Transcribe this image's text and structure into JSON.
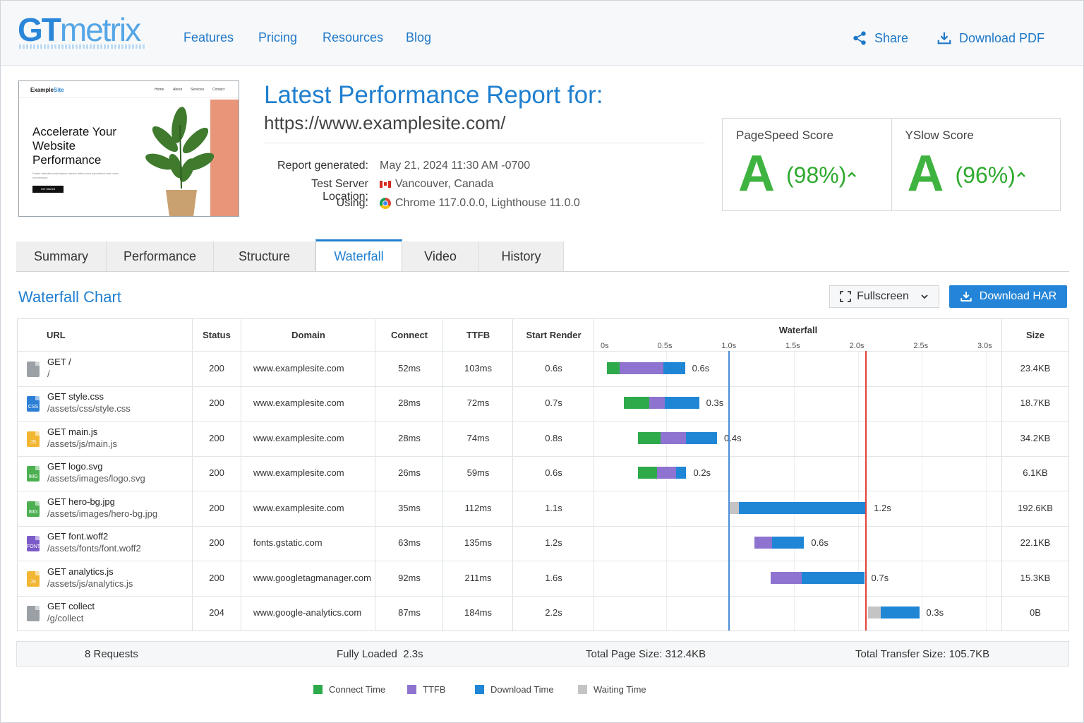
{
  "brand": {
    "logo_gt": "GT",
    "logo_metrix": "metrix"
  },
  "nav": {
    "features": "Features",
    "pricing": "Pricing",
    "resources": "Resources",
    "blog": "Blog"
  },
  "actions": {
    "share": "Share",
    "download_pdf": "Download PDF"
  },
  "thumbnail": {
    "site_name_a": "Example",
    "site_name_b": "Site",
    "menu": [
      "Home",
      "About",
      "Services",
      "Contact"
    ],
    "headline": "Accelerate Your Website Performance",
    "subtext": "Faster website performance means better user experience and more conversions.",
    "cta": "Get Started"
  },
  "report": {
    "heading": "Latest Performance Report for:",
    "url": "https://www.examplesite.com/",
    "generated_label": "Report generated:",
    "generated_value": "May 21, 2024 11:30 AM -0700",
    "location_label": "Test Server Location:",
    "location_value": "Vancouver, Canada",
    "using_label": "Using:",
    "using_value": "Chrome 117.0.0.0, Lighthouse 11.0.0"
  },
  "scores": {
    "pagespeed": {
      "label": "PageSpeed Score",
      "grade": "A",
      "percent": "(98%)",
      "arrow": "^"
    },
    "yslow": {
      "label": "YSlow Score",
      "grade": "A",
      "percent": "(96%)",
      "arrow": "^"
    }
  },
  "tabs": [
    "Summary",
    "Performance",
    "Structure",
    "Waterfall",
    "Video",
    "History"
  ],
  "active_tab": "Waterfall",
  "waterfall": {
    "title": "Waterfall Chart",
    "fullscreen_label": "Fullscreen",
    "download_har_label": "Download HAR",
    "headers": {
      "url": "URL",
      "status": "Status",
      "domain": "Domain",
      "connect": "Connect",
      "ttfb": "TTFB",
      "start_render": "Start Render",
      "waterfall": "Waterfall",
      "size": "Size"
    },
    "ticks": [
      "0s",
      "0.5s",
      "1.0s",
      "1.5s",
      "2.0s",
      "2.5s",
      "3.0s"
    ],
    "axis_max_s": 3.0,
    "markers_s": [
      {
        "name": "first-render",
        "t": 1.0,
        "color": "#4a90d9"
      },
      {
        "name": "onload",
        "t": 2.07,
        "color": "#e0443a"
      }
    ],
    "colors": {
      "connect": "#2eaa4a",
      "ttfb": "#8e74d0",
      "download": "#1f86d6",
      "wait": "#c4c4c4"
    },
    "rows": [
      {
        "method": "GET /",
        "path": "/",
        "icon": "doc",
        "status": "200",
        "domain": "www.examplesite.com",
        "connect": "52ms",
        "ttfb": "103ms",
        "start_render": "0.6s",
        "size": "23.4KB",
        "bar": {
          "start": 0.05,
          "wait": 0,
          "connect": 0.1,
          "ttfb": 0.34,
          "download": 0.17
        },
        "bar_label": "0.6s"
      },
      {
        "method": "GET style.css",
        "path": "/assets/css/style.css",
        "icon": "css",
        "status": "200",
        "domain": "www.examplesite.com",
        "connect": "28ms",
        "ttfb": "72ms",
        "start_render": "0.7s",
        "size": "18.7KB",
        "bar": {
          "start": 0.18,
          "wait": 0,
          "connect": 0.2,
          "ttfb": 0.12,
          "download": 0.27
        },
        "bar_label": "0.3s"
      },
      {
        "method": "GET main.js",
        "path": "/assets/js/main.js",
        "icon": "js",
        "status": "200",
        "domain": "www.examplesite.com",
        "connect": "28ms",
        "ttfb": "74ms",
        "start_render": "0.8s",
        "size": "34.2KB",
        "bar": {
          "start": 0.29,
          "wait": 0,
          "connect": 0.18,
          "ttfb": 0.2,
          "download": 0.24
        },
        "bar_label": "0.4s"
      },
      {
        "method": "GET logo.svg",
        "path": "/assets/images/logo.svg",
        "icon": "img",
        "status": "200",
        "domain": "www.examplesite.com",
        "connect": "26ms",
        "ttfb": "59ms",
        "start_render": "0.6s",
        "size": "6.1KB",
        "bar": {
          "start": 0.29,
          "wait": 0,
          "connect": 0.15,
          "ttfb": 0.15,
          "download": 0.08
        },
        "bar_label": "0.2s"
      },
      {
        "method": "GET hero-bg.jpg",
        "path": "/assets/images/hero-bg.jpg",
        "icon": "img",
        "status": "200",
        "domain": "www.examplesite.com",
        "connect": "35ms",
        "ttfb": "112ms",
        "start_render": "1.1s",
        "size": "192.6KB",
        "bar": {
          "start": 1.0,
          "wait": 0.08,
          "connect": 0,
          "ttfb": 0,
          "download": 1.0
        },
        "bar_label": "1.2s"
      },
      {
        "method": "GET font.woff2",
        "path": "/assets/fonts/font.woff2",
        "icon": "font",
        "status": "200",
        "domain": "fonts.gstatic.com",
        "connect": "63ms",
        "ttfb": "135ms",
        "start_render": "1.2s",
        "size": "22.1KB",
        "bar": {
          "start": 1.2,
          "wait": 0,
          "connect": 0,
          "ttfb": 0.14,
          "download": 0.25
        },
        "bar_label": "0.6s"
      },
      {
        "method": "GET analytics.js",
        "path": "/assets/js/analytics.js",
        "icon": "js",
        "status": "200",
        "domain": "www.googletagmanager.com",
        "connect": "92ms",
        "ttfb": "211ms",
        "start_render": "1.6s",
        "size": "15.3KB",
        "bar": {
          "start": 1.33,
          "wait": 0,
          "connect": 0,
          "ttfb": 0.24,
          "download": 0.49
        },
        "bar_label": "0.7s"
      },
      {
        "method": "GET collect",
        "path": "/g/collect",
        "icon": "doc",
        "status": "204",
        "domain": "www.google-analytics.com",
        "connect": "87ms",
        "ttfb": "184ms",
        "start_render": "2.2s",
        "size": "0B",
        "bar": {
          "start": 2.09,
          "wait": 0.1,
          "connect": 0,
          "ttfb": 0,
          "download": 0.3
        },
        "bar_label": "0.3s"
      }
    ]
  },
  "summary": {
    "requests": "8 Requests",
    "fully_loaded_label": "Fully Loaded",
    "fully_loaded_value": "2.3s",
    "page_size_label": "Total Page Size:",
    "page_size_value": "312.4KB",
    "transfer_label": "Total Transfer Size:",
    "transfer_value": "105.7KB"
  },
  "legend": {
    "connect": "Connect Time",
    "ttfb": "TTFB",
    "download": "Download Time",
    "wait": "Waiting Time"
  }
}
